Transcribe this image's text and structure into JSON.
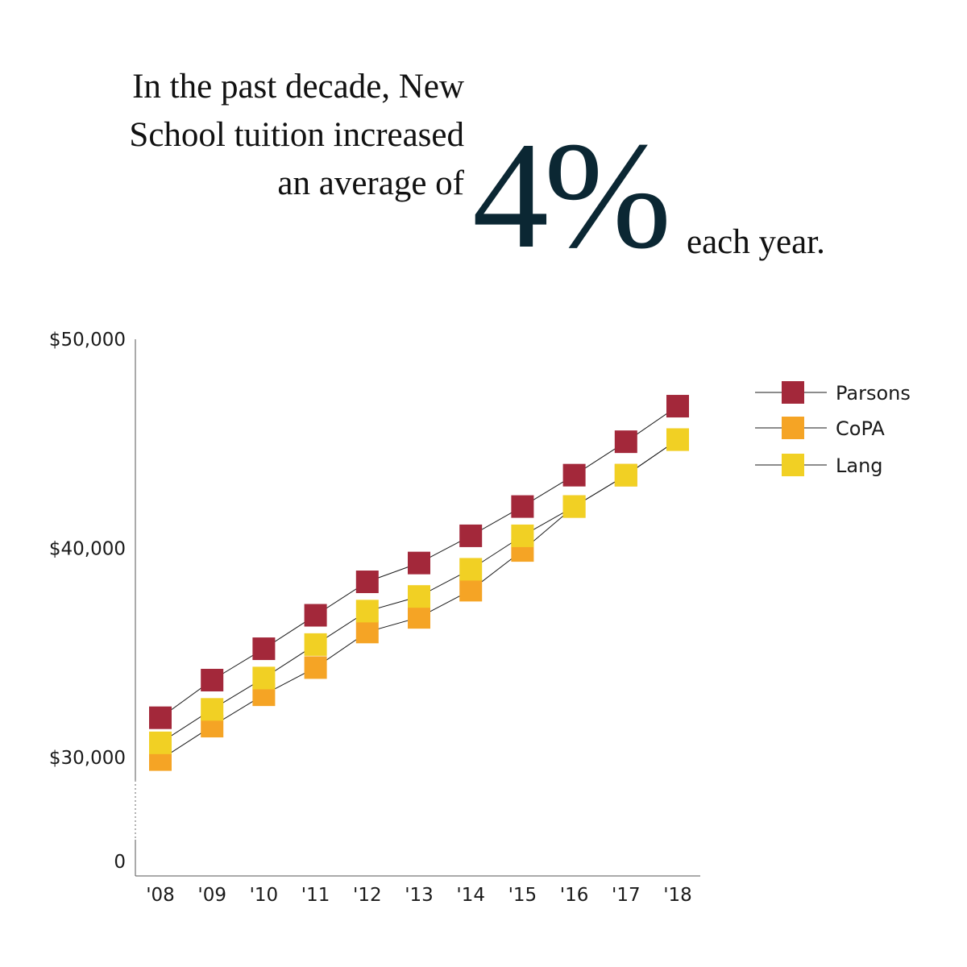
{
  "headline": {
    "line1": "In the past decade, New",
    "line2": "School tuition increased",
    "line3": "an average of",
    "big_number": "4%",
    "tail": "each year."
  },
  "chart_data": {
    "type": "line",
    "title": "",
    "xlabel": "",
    "ylabel": "",
    "categories": [
      "'08",
      "'09",
      "'10",
      "'11",
      "'12",
      "'13",
      "'14",
      "'15",
      "'16",
      "'17",
      "'18"
    ],
    "y_ticks": [
      {
        "value": 0,
        "label": "0"
      },
      {
        "value": 30000,
        "label": "$30,000"
      },
      {
        "value": 40000,
        "label": "$40,000"
      },
      {
        "value": 50000,
        "label": "$50,000"
      }
    ],
    "ylim": [
      25000,
      50000
    ],
    "axis_break": true,
    "grid": false,
    "legend_position": "top-right",
    "marker": "square",
    "series": [
      {
        "name": "Parsons",
        "color": "#a3283a",
        "values": [
          31900,
          33700,
          35200,
          36800,
          38400,
          39300,
          40600,
          42000,
          43500,
          45100,
          46800
        ]
      },
      {
        "name": "CoPA",
        "color": "#f5a425",
        "values": [
          29900,
          31500,
          33000,
          34300,
          36000,
          36700,
          38000,
          39900,
          42000,
          43500,
          45200
        ]
      },
      {
        "name": "Lang",
        "color": "#f1d024",
        "values": [
          30700,
          32300,
          33800,
          35400,
          37000,
          37700,
          39000,
          40600,
          42000,
          43500,
          45200
        ]
      }
    ]
  }
}
